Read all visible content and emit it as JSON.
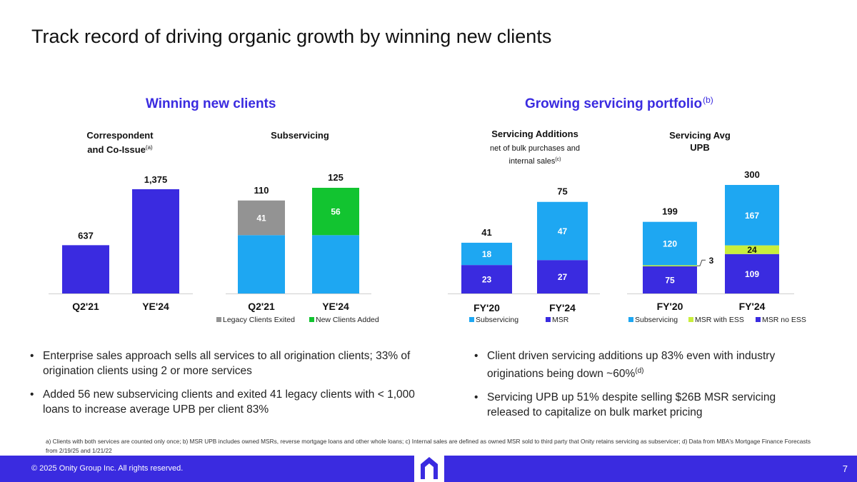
{
  "title": "Track record of driving organic growth by winning new clients",
  "left_title": "Winning new clients",
  "right_title": "Growing servicing portfolio",
  "right_title_sup": "(b)",
  "labels": {
    "correspondent_line1": "Correspondent",
    "correspondent_line2": "and Co-Issue",
    "correspondent_sup": "(a)",
    "subservicing": "Subservicing",
    "servicing_additions": "Servicing Additions",
    "servicing_additions_note_line1": "net of bulk purchases and",
    "servicing_additions_note_line2": "internal sales",
    "servicing_additions_note_sup": "(c)",
    "servicing_avg_line1": "Servicing Avg",
    "servicing_avg_line2": "UPB"
  },
  "colors": {
    "navy": "#3a2be0",
    "light_blue": "#1ea7f2",
    "gray": "#939393",
    "green": "#12c430",
    "lime": "#c9ee3c"
  },
  "chart_data": [
    {
      "id": "correspondent",
      "type": "bar",
      "title": "Correspondent and Co-Issue",
      "categories": [
        "Q2'21",
        "YE'24"
      ],
      "values": [
        637,
        1375
      ],
      "value_labels": [
        "637",
        "1,375"
      ],
      "ylim": [
        0,
        1375
      ]
    },
    {
      "id": "subservicing",
      "type": "bar",
      "stacked": true,
      "title": "Subservicing",
      "categories": [
        "Q2'21",
        "YE'24"
      ],
      "series": [
        {
          "name": "Base",
          "values": [
            69,
            69
          ],
          "color": "#1ea7f2",
          "legend": false,
          "labels": [
            "",
            ""
          ]
        },
        {
          "name": "Legacy Clients Exited",
          "values": [
            41,
            0
          ],
          "color": "#939393",
          "legend": true,
          "labels": [
            "41",
            ""
          ]
        },
        {
          "name": "New Clients Added",
          "values": [
            0,
            56
          ],
          "color": "#12c430",
          "legend": true,
          "labels": [
            "",
            "56"
          ]
        }
      ],
      "totals": [
        "110",
        "125"
      ],
      "ylim": [
        0,
        125
      ]
    },
    {
      "id": "additions",
      "type": "bar",
      "stacked": true,
      "title": "Servicing Additions",
      "categories": [
        "FY'20",
        "FY'24"
      ],
      "series": [
        {
          "name": "MSR",
          "values": [
            23,
            27
          ],
          "color": "#3a2be0",
          "legend": true,
          "labels": [
            "23",
            "27"
          ]
        },
        {
          "name": "Subservicing",
          "values": [
            18,
            47
          ],
          "color": "#1ea7f2",
          "legend": true,
          "labels": [
            "18",
            "47"
          ]
        }
      ],
      "legend_order": [
        "Subservicing",
        "MSR"
      ],
      "totals": [
        "41",
        "75"
      ],
      "ylim": [
        0,
        75
      ]
    },
    {
      "id": "avg_upb",
      "type": "bar",
      "stacked": true,
      "title": "Servicing Avg UPB",
      "categories": [
        "FY'20",
        "FY'24"
      ],
      "series": [
        {
          "name": "MSR no ESS",
          "values": [
            75,
            109
          ],
          "color": "#3a2be0",
          "legend": true,
          "labels": [
            "75",
            "109"
          ]
        },
        {
          "name": "MSR with ESS",
          "values": [
            3,
            24
          ],
          "color": "#c9ee3c",
          "legend": true,
          "labels": [
            "",
            "24"
          ]
        },
        {
          "name": "Subservicing",
          "values": [
            120,
            167
          ],
          "color": "#1ea7f2",
          "legend": true,
          "labels": [
            "120",
            "167"
          ]
        }
      ],
      "legend_order": [
        "Subservicing",
        "MSR with ESS",
        "MSR no ESS"
      ],
      "totals": [
        "199",
        "300"
      ],
      "callout": "3",
      "ylim": [
        0,
        300
      ]
    }
  ],
  "bullets_left": [
    "Enterprise sales approach sells all services to all origination clients; 33% of origination clients using 2 or more services",
    "Added 56 new subservicing clients and exited 41 legacy clients with < 1,000 loans to increase average UPB per client 83%"
  ],
  "bullets_right": [
    {
      "text": "Client driven servicing additions up 83% even with industry originations being down ~60%",
      "sup": "(d)"
    },
    {
      "text": "Servicing UPB up 51% despite selling $26B MSR servicing released to capitalize on bulk market pricing",
      "sup": ""
    }
  ],
  "footnote": "a) Clients with both services are counted only once; b) MSR UPB includes owned MSRs, reverse mortgage loans and other whole loans; c) Internal sales are defined as owned MSR sold to third party that Onity retains servicing as subservicer; d) Data from MBA's Mortgage Finance Forecasts from 2/19/25 and 1/21/22",
  "footer": {
    "copyright": "© 2025 Onity Group Inc. All rights reserved.",
    "page": "7"
  }
}
